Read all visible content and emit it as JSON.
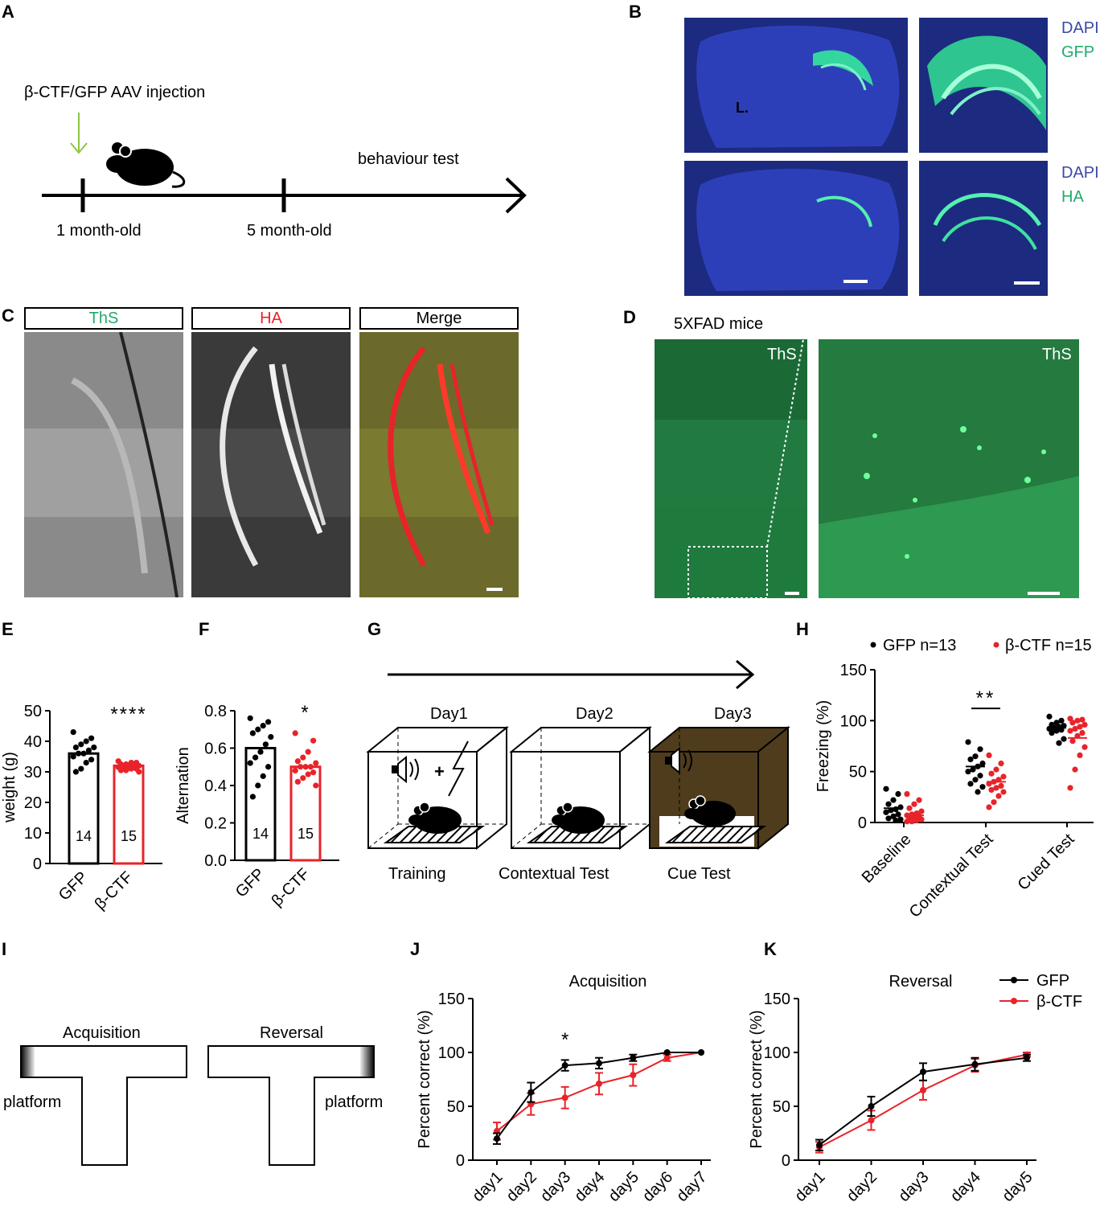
{
  "panels": {
    "A": "A",
    "B": "B",
    "C": "C",
    "D": "D",
    "E": "E",
    "F": "F",
    "G": "G",
    "H": "H",
    "I": "I",
    "J": "J",
    "K": "K"
  },
  "colors": {
    "gfp": "#000000",
    "ctf": "#e8232a",
    "ths_green": "#23a96b",
    "ha_red": "#e8232a",
    "dapi_blue": "#3b49a6",
    "gfp_green": "#1fad6b",
    "arrow_green": "#8cc63f",
    "cage_brown": "#4f3c1c"
  },
  "panelA": {
    "injection": "β-CTF/GFP AAV injection",
    "behaviour": "behaviour test",
    "t1": "1 month-old",
    "t2": "5 month-old"
  },
  "panelB": {
    "dapi1": "DAPI",
    "gfp": "GFP",
    "dapi2": "DAPI",
    "ha": "HA",
    "marker": "L."
  },
  "panelC": {
    "ths": "ThS",
    "ha": "HA",
    "merge": "Merge"
  },
  "panelD": {
    "title": "5XFAD mice",
    "ths1": "ThS",
    "ths2": "ThS"
  },
  "chartE": {
    "type": "bar",
    "categories": [
      "GFP",
      "β-CTF"
    ],
    "values": [
      36,
      32
    ],
    "n": [
      "14",
      "15"
    ],
    "ylabel": "weight (g)",
    "ylim": [
      0,
      50
    ],
    "yticks": [
      "0",
      "10",
      "20",
      "30",
      "40",
      "50"
    ],
    "sig": "****",
    "points": [
      [
        43,
        41,
        40,
        39,
        38,
        38,
        37,
        36,
        36,
        35,
        34,
        33,
        31,
        30
      ],
      [
        33.5,
        33,
        33,
        32.5,
        32.5,
        32,
        32,
        32,
        31.5,
        31.5,
        31,
        31,
        30.5,
        30.5,
        30
      ]
    ]
  },
  "chartF": {
    "type": "bar",
    "categories": [
      "GFP",
      "β-CTF"
    ],
    "values": [
      0.6,
      0.5
    ],
    "n": [
      "14",
      "15"
    ],
    "ylabel": "Alternation",
    "ylim": [
      0,
      0.8
    ],
    "yticks": [
      "0.0",
      "0.2",
      "0.4",
      "0.6",
      "0.8"
    ],
    "sig": "*",
    "points": [
      [
        0.76,
        0.74,
        0.72,
        0.7,
        0.68,
        0.66,
        0.62,
        0.58,
        0.55,
        0.52,
        0.5,
        0.45,
        0.4,
        0.34
      ],
      [
        0.68,
        0.64,
        0.58,
        0.55,
        0.53,
        0.52,
        0.5,
        0.5,
        0.5,
        0.48,
        0.47,
        0.46,
        0.44,
        0.42,
        0.4
      ]
    ]
  },
  "panelG": {
    "day1": "Day1",
    "day2": "Day2",
    "day3": "Day3",
    "l1": "Training",
    "l2": "Contextual Test",
    "l3": "Cue Test",
    "plus": "+"
  },
  "chartH": {
    "type": "scatter",
    "ylabel": "Freezing (%)",
    "ylim": [
      0,
      150
    ],
    "yticks": [
      "0",
      "50",
      "100",
      "150"
    ],
    "categories": [
      "Baseline",
      "Contextual Test",
      "Cued Test"
    ],
    "legend": [
      "GFP n=13",
      "β-CTF n=15"
    ],
    "sig": "**",
    "series": [
      {
        "means": [
          14,
          55,
          93
        ],
        "points": [
          [
            33,
            28,
            22,
            18,
            15,
            13,
            12,
            10,
            8,
            6,
            4,
            3,
            2
          ],
          [
            79,
            72,
            65,
            62,
            58,
            55,
            52,
            50,
            46,
            42,
            38,
            35,
            30
          ],
          [
            104,
            100,
            98,
            96,
            95,
            94,
            93,
            92,
            91,
            90,
            88,
            82,
            78
          ]
        ]
      },
      {
        "means": [
          7,
          40,
          83
        ],
        "points": [
          [
            28,
            22,
            18,
            14,
            11,
            9,
            8,
            7,
            6,
            5,
            4,
            3,
            2,
            1,
            1
          ],
          [
            66,
            58,
            52,
            48,
            45,
            42,
            40,
            38,
            36,
            34,
            32,
            30,
            26,
            20,
            15
          ],
          [
            102,
            101,
            100,
            98,
            96,
            94,
            92,
            90,
            88,
            85,
            80,
            74,
            66,
            52,
            34
          ]
        ]
      }
    ]
  },
  "panelI": {
    "acq": "Acquisition",
    "rev": "Reversal",
    "platform1": "platform",
    "platform2": "platform"
  },
  "chartJ": {
    "type": "line",
    "title": "Acquisition",
    "ylabel": "Percent correct (%)",
    "ylim": [
      0,
      150
    ],
    "yticks": [
      "0",
      "50",
      "100",
      "150"
    ],
    "x": [
      "day1",
      "day2",
      "day3",
      "day4",
      "day5",
      "day6",
      "day7"
    ],
    "sig": "*",
    "series": [
      {
        "values": [
          20,
          63,
          88,
          90,
          95,
          100,
          100
        ],
        "err": [
          5,
          9,
          5,
          5,
          3,
          0,
          0
        ]
      },
      {
        "values": [
          27,
          52,
          58,
          71,
          79,
          95,
          100
        ],
        "err": [
          8,
          10,
          10,
          10,
          10,
          3,
          0
        ]
      }
    ]
  },
  "chartK": {
    "type": "line",
    "title": "Reversal",
    "ylabel": "Percent correct (%)",
    "ylim": [
      0,
      150
    ],
    "yticks": [
      "0",
      "50",
      "100",
      "150"
    ],
    "x": [
      "day1",
      "day2",
      "day3",
      "day4",
      "day5"
    ],
    "legend": [
      "GFP",
      "β-CTF"
    ],
    "series": [
      {
        "values": [
          14,
          50,
          82,
          89,
          95
        ],
        "err": [
          5,
          9,
          8,
          6,
          3
        ]
      },
      {
        "values": [
          12,
          37,
          65,
          88,
          98
        ],
        "err": [
          5,
          9,
          9,
          6,
          2
        ]
      }
    ]
  }
}
